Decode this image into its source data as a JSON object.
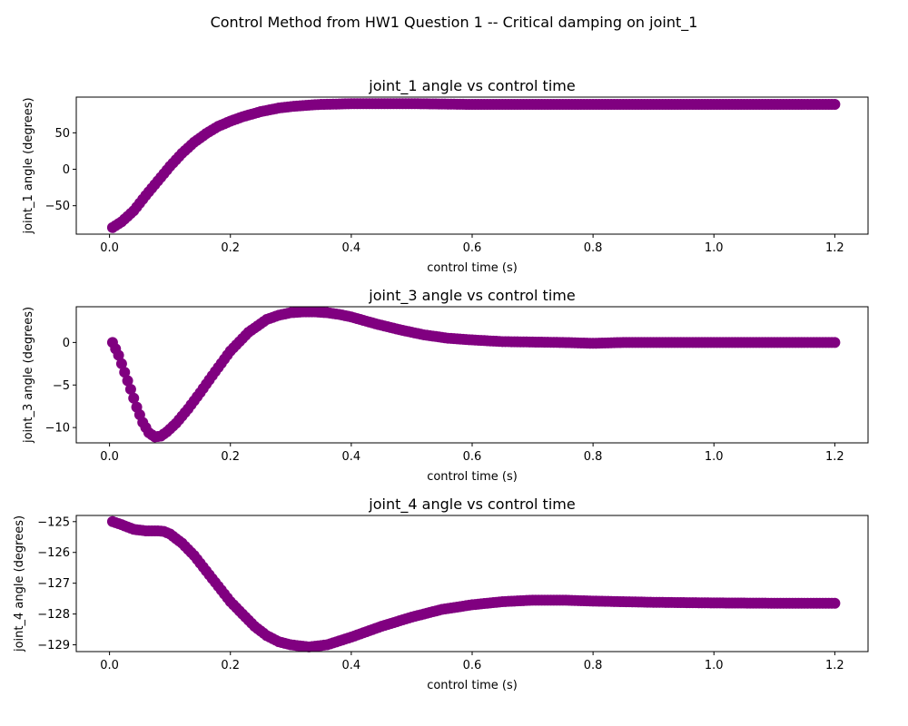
{
  "figure": {
    "suptitle": "Control Method from HW1 Question 1 -- Critical damping on joint_1",
    "marker_color": "#800080"
  },
  "chart_data": [
    {
      "type": "scatter",
      "title": "joint_1 angle vs control time",
      "xlabel": "control time (s)",
      "ylabel": "joint_1 angle (degrees)",
      "xlim": [
        -0.055,
        1.255
      ],
      "ylim": [
        -89,
        99
      ],
      "xticks": [
        0.0,
        0.2,
        0.4,
        0.6,
        0.8,
        1.0,
        1.2
      ],
      "xtick_labels": [
        "0.0",
        "0.2",
        "0.4",
        "0.6",
        "0.8",
        "1.0",
        "1.2"
      ],
      "yticks": [
        -50,
        0,
        50
      ],
      "ytick_labels": [
        "−50",
        "0",
        "50"
      ],
      "grid": false,
      "series": [
        {
          "x": [
            0.005,
            0.02,
            0.04,
            0.06,
            0.08,
            0.1,
            0.12,
            0.14,
            0.16,
            0.18,
            0.2,
            0.22,
            0.25,
            0.28,
            0.3,
            0.33,
            0.35,
            0.38,
            0.4,
            0.45,
            0.5,
            0.55,
            0.6,
            0.7,
            0.8,
            0.9,
            1.0,
            1.1,
            1.2
          ],
          "y": [
            -80,
            -72,
            -57,
            -36,
            -16,
            4,
            22,
            37,
            49,
            59,
            66,
            72,
            79,
            84,
            86,
            88,
            89,
            89.5,
            90,
            90,
            90,
            89.5,
            89,
            89,
            89,
            89,
            89,
            89,
            89
          ]
        }
      ]
    },
    {
      "type": "scatter",
      "title": "joint_3 angle vs control time",
      "xlabel": "control time (s)",
      "ylabel": "joint_3 angle (degrees)",
      "xlim": [
        -0.055,
        1.255
      ],
      "ylim": [
        -11.8,
        4.2
      ],
      "xticks": [
        0.0,
        0.2,
        0.4,
        0.6,
        0.8,
        1.0,
        1.2
      ],
      "xtick_labels": [
        "0.0",
        "0.2",
        "0.4",
        "0.6",
        "0.8",
        "1.0",
        "1.2"
      ],
      "yticks": [
        -10,
        -5,
        0
      ],
      "ytick_labels": [
        "−10",
        "−5",
        "0"
      ],
      "grid": false,
      "series": [
        {
          "x": [
            0.005,
            0.015,
            0.025,
            0.035,
            0.045,
            0.055,
            0.065,
            0.075,
            0.085,
            0.095,
            0.11,
            0.13,
            0.15,
            0.17,
            0.2,
            0.23,
            0.26,
            0.28,
            0.3,
            0.32,
            0.34,
            0.36,
            0.38,
            0.4,
            0.44,
            0.48,
            0.52,
            0.56,
            0.6,
            0.65,
            0.7,
            0.75,
            0.8,
            0.85,
            0.9,
            1.0,
            1.1,
            1.2
          ],
          "y": [
            0,
            -1.5,
            -3.5,
            -5.5,
            -7.6,
            -9.4,
            -10.6,
            -11.1,
            -11.0,
            -10.5,
            -9.5,
            -7.8,
            -5.9,
            -3.9,
            -1.0,
            1.2,
            2.7,
            3.2,
            3.5,
            3.6,
            3.6,
            3.5,
            3.3,
            3.0,
            2.2,
            1.5,
            0.9,
            0.5,
            0.3,
            0.1,
            0.05,
            0.0,
            -0.1,
            0.0,
            0.0,
            0.0,
            0.0,
            0.0
          ]
        }
      ]
    },
    {
      "type": "scatter",
      "title": "joint_4 angle vs control time",
      "xlabel": "control time (s)",
      "ylabel": "joint_4 angle (degrees)",
      "xlim": [
        -0.055,
        1.255
      ],
      "ylim": [
        -129.22,
        -124.8
      ],
      "xticks": [
        0.0,
        0.2,
        0.4,
        0.6,
        0.8,
        1.0,
        1.2
      ],
      "xtick_labels": [
        "0.0",
        "0.2",
        "0.4",
        "0.6",
        "0.8",
        "1.0",
        "1.2"
      ],
      "yticks": [
        -125,
        -126,
        -127,
        -128,
        -129
      ],
      "ytick_labels": [
        "−125",
        "−126",
        "−127",
        "−128",
        "−129"
      ],
      "grid": false,
      "series": [
        {
          "x": [
            0.005,
            0.02,
            0.04,
            0.06,
            0.08,
            0.09,
            0.1,
            0.12,
            0.14,
            0.16,
            0.18,
            0.2,
            0.22,
            0.24,
            0.26,
            0.28,
            0.3,
            0.33,
            0.36,
            0.4,
            0.45,
            0.5,
            0.55,
            0.6,
            0.65,
            0.7,
            0.75,
            0.8,
            0.85,
            0.9,
            0.95,
            1.0,
            1.1,
            1.2
          ],
          "y": [
            -125.0,
            -125.1,
            -125.25,
            -125.3,
            -125.3,
            -125.32,
            -125.4,
            -125.7,
            -126.1,
            -126.6,
            -127.1,
            -127.6,
            -128.0,
            -128.4,
            -128.7,
            -128.9,
            -129.0,
            -129.07,
            -129.0,
            -128.75,
            -128.4,
            -128.1,
            -127.85,
            -127.7,
            -127.6,
            -127.55,
            -127.55,
            -127.58,
            -127.6,
            -127.62,
            -127.63,
            -127.64,
            -127.65,
            -127.65
          ]
        }
      ]
    }
  ]
}
